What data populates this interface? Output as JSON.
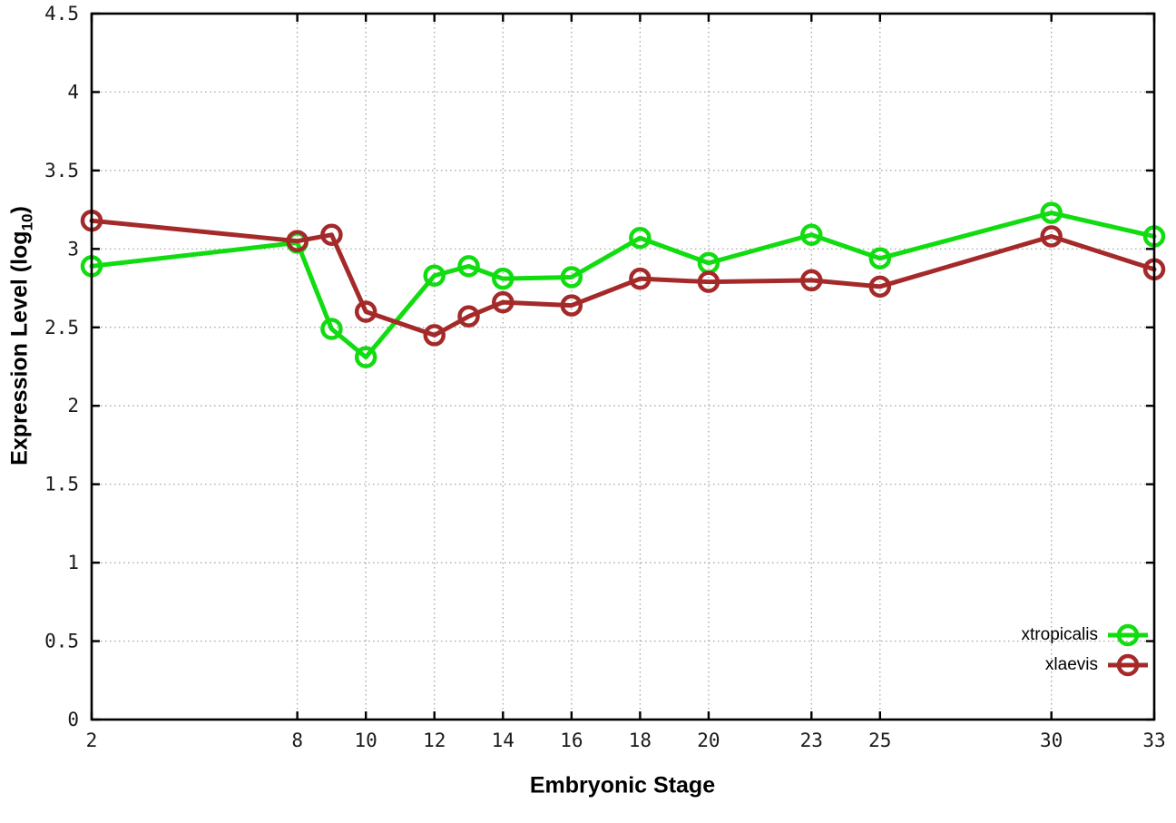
{
  "chart_data": {
    "type": "line",
    "title": "",
    "xlabel": "Embryonic Stage",
    "ylabel": {
      "text": "Expression Level (log",
      "subscript": "10",
      "suffix": ")"
    },
    "x": [
      2,
      8,
      9,
      10,
      12,
      13,
      14,
      16,
      18,
      20,
      23,
      25,
      30,
      33
    ],
    "series": [
      {
        "name": "xtropicalis",
        "color": "#10dc10",
        "values": [
          2.89,
          3.04,
          2.49,
          2.31,
          2.83,
          2.89,
          2.81,
          2.82,
          3.07,
          2.91,
          3.09,
          2.94,
          3.23,
          3.08
        ]
      },
      {
        "name": "xlaevis",
        "color": "#a42a2a",
        "values": [
          3.18,
          3.05,
          3.09,
          2.6,
          2.45,
          2.57,
          2.66,
          2.64,
          2.81,
          2.79,
          2.8,
          2.76,
          3.08,
          2.87
        ]
      }
    ],
    "xlim": [
      2,
      33
    ],
    "ylim": [
      0,
      4.5
    ],
    "xticks": [
      2,
      8,
      10,
      12,
      14,
      16,
      18,
      20,
      23,
      25,
      30,
      33
    ],
    "xtick_labels": [
      "2",
      "8",
      "10",
      "12",
      "14",
      "16",
      "18",
      "20",
      "23",
      "25",
      "30",
      "33"
    ],
    "yticks": [
      0,
      0.5,
      1,
      1.5,
      2,
      2.5,
      3,
      3.5,
      4,
      4.5
    ],
    "ytick_labels": [
      "0",
      "0.5",
      "1",
      "1.5",
      "2",
      "2.5",
      "3",
      "3.5",
      "4",
      "4.5"
    ],
    "grid": true,
    "legend_position": "bottom-right",
    "colors": {
      "background": "#ffffff",
      "border": "#000000",
      "grid": "#9e9e9e",
      "tick_label": "#1a1a1a"
    }
  }
}
